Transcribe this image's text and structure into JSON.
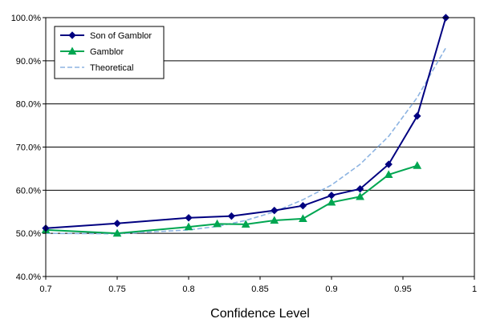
{
  "chart_data": {
    "type": "line",
    "title": "",
    "xlabel": "Confidence Level",
    "ylabel": "",
    "xlim": [
      0.7,
      1.0
    ],
    "ylim": [
      40,
      100
    ],
    "x_ticks": [
      "0.7",
      "0.75",
      "0.8",
      "0.85",
      "0.9",
      "0.95",
      "1"
    ],
    "y_ticks": [
      "40.0%",
      "50.0%",
      "60.0%",
      "70.0%",
      "80.0%",
      "90.0%",
      "100.0%"
    ],
    "grid": "horizontal",
    "legend_position": "top-left",
    "series": [
      {
        "name": "Son of Gamblor",
        "color": "#000080",
        "marker": "diamond",
        "line": "solid",
        "x": [
          0.7,
          0.75,
          0.8,
          0.83,
          0.86,
          0.88,
          0.9,
          0.92,
          0.94,
          0.96,
          0.98
        ],
        "y": [
          51.2,
          52.3,
          53.6,
          54.0,
          55.3,
          56.4,
          58.8,
          60.3,
          66.0,
          77.2,
          100.0
        ]
      },
      {
        "name": "Gamblor",
        "color": "#00A651",
        "marker": "triangle",
        "line": "solid",
        "x": [
          0.7,
          0.75,
          0.8,
          0.82,
          0.84,
          0.86,
          0.88,
          0.9,
          0.92,
          0.94,
          0.96
        ],
        "y": [
          50.8,
          50.0,
          51.5,
          52.2,
          52.1,
          53.0,
          53.4,
          57.2,
          58.5,
          63.6,
          65.7
        ]
      },
      {
        "name": "Theoretical",
        "color": "#8DB4E2",
        "marker": "none",
        "line": "dashed",
        "x": [
          0.7,
          0.75,
          0.8,
          0.82,
          0.84,
          0.86,
          0.88,
          0.9,
          0.92,
          0.94,
          0.96,
          0.98
        ],
        "y": [
          50.0,
          49.9,
          50.8,
          51.6,
          53.0,
          55.0,
          57.8,
          61.2,
          66.0,
          72.5,
          81.5,
          93.0
        ]
      }
    ]
  }
}
